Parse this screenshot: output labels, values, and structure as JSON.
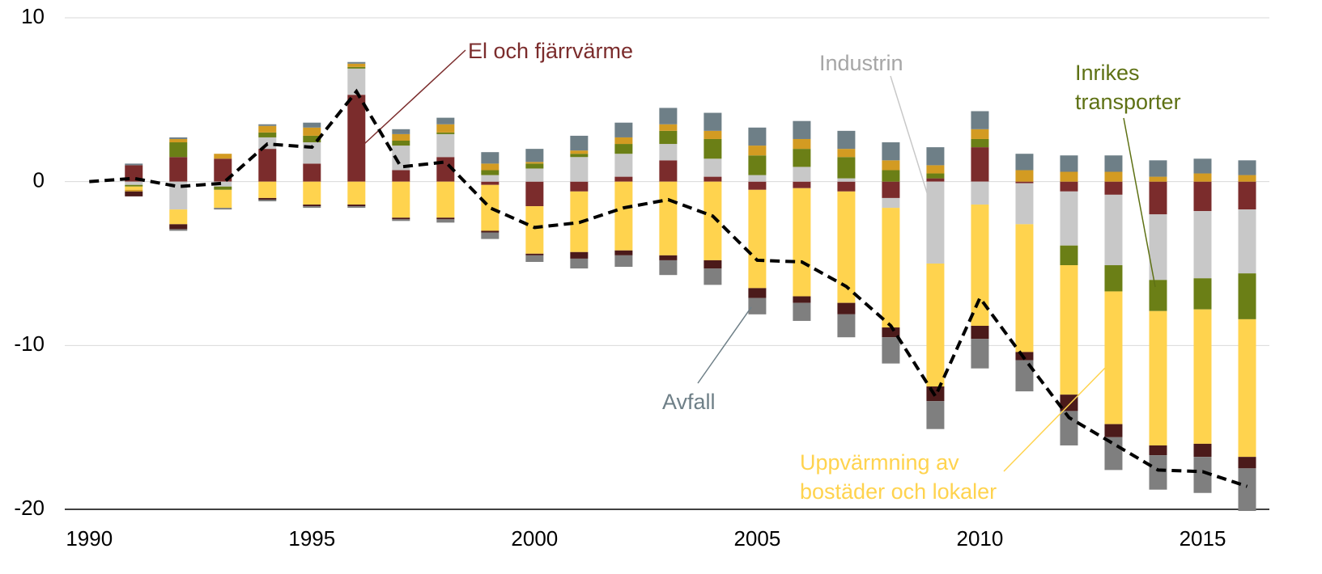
{
  "chart_data": {
    "type": "bar",
    "stacked": true,
    "x": [
      1990,
      1991,
      1992,
      1993,
      1994,
      1995,
      1996,
      1997,
      1998,
      1999,
      2000,
      2001,
      2002,
      2003,
      2004,
      2005,
      2006,
      2007,
      2008,
      2009,
      2010,
      2011,
      2012,
      2013,
      2014,
      2015,
      2016
    ],
    "xlim": [
      1989.45,
      2016.5
    ],
    "xticks": [
      1990,
      1995,
      2000,
      2005,
      2010,
      2015
    ],
    "ylim": [
      -20,
      10
    ],
    "yticks": [
      -20,
      -10,
      0,
      10
    ],
    "grid": true,
    "series": [
      {
        "name": "El och fjärrvärme",
        "color": "#7B2C2C",
        "values": [
          0,
          1.0,
          1.5,
          1.4,
          2.0,
          1.1,
          5.3,
          0.7,
          1.5,
          -0.2,
          -1.5,
          -0.6,
          0.3,
          1.3,
          0.3,
          -0.5,
          -0.4,
          -0.6,
          -1.0,
          0.2,
          2.1,
          -0.1,
          -0.6,
          -0.8,
          -2.0,
          -1.8,
          -1.7
        ]
      },
      {
        "name": "Industrin",
        "color": "#C8C8C8",
        "values": [
          0,
          -0.2,
          -1.7,
          -0.3,
          0.7,
          1.3,
          1.6,
          1.5,
          1.4,
          0.4,
          0.8,
          1.5,
          1.4,
          1.0,
          1.1,
          0.4,
          0.9,
          0.2,
          -0.6,
          -5.0,
          -1.4,
          -2.5,
          -3.3,
          -4.3,
          -4.0,
          -4.1,
          -3.9
        ]
      },
      {
        "name": "Inrikes transporter",
        "color": "#6B7F16",
        "values": [
          0,
          -0.1,
          0.9,
          -0.2,
          0.3,
          0.4,
          0.1,
          0.3,
          0.1,
          0.3,
          0.3,
          0.2,
          0.6,
          0.8,
          1.2,
          1.2,
          1.1,
          1.3,
          0.7,
          0.3,
          0.5,
          0,
          -1.2,
          -1.6,
          -1.9,
          -1.9,
          -2.8
        ]
      },
      {
        "name": "Uppvärmning av bostäder och lokaler",
        "color": "#FFD34E",
        "values": [
          0,
          -0.2,
          -0.9,
          -1.1,
          -1.0,
          -1.4,
          -1.4,
          -2.2,
          -2.2,
          -2.8,
          -2.9,
          -3.7,
          -4.2,
          -4.5,
          -4.8,
          -6.0,
          -6.6,
          -6.8,
          -7.3,
          -7.5,
          -7.4,
          -7.8,
          -7.9,
          -8.1,
          -8.2,
          -8.2,
          -8.4
        ]
      },
      {
        "color": "#D39B22",
        "values": [
          0,
          -0.1,
          0.2,
          0.3,
          0.4,
          0.5,
          0.2,
          0.4,
          0.5,
          0.4,
          0.1,
          0.2,
          0.4,
          0.4,
          0.5,
          0.6,
          0.6,
          0.5,
          0.6,
          0.5,
          0.6,
          0.7,
          0.6,
          0.6,
          0.3,
          0.5,
          0.4
        ]
      },
      {
        "color": "#6E7F87",
        "values": [
          0,
          0.1,
          0.1,
          0,
          0.1,
          0.3,
          0.1,
          0.3,
          0.4,
          0.7,
          0.8,
          0.9,
          0.9,
          1.0,
          1.1,
          1.1,
          1.1,
          1.1,
          1.1,
          1.1,
          1.1,
          1.0,
          1.0,
          1.0,
          1.0,
          0.9,
          0.9
        ]
      },
      {
        "color": "#4B1A1A",
        "values": [
          0,
          -0.3,
          -0.3,
          0,
          -0.1,
          -0.1,
          -0.1,
          -0.1,
          -0.1,
          -0.1,
          -0.1,
          -0.4,
          -0.3,
          -0.3,
          -0.5,
          -0.6,
          -0.4,
          -0.7,
          -0.6,
          -0.9,
          -0.8,
          -0.5,
          -1.0,
          -0.8,
          -0.6,
          -0.8,
          -0.7
        ]
      },
      {
        "name": "Avfall",
        "color": "#7F7F7F",
        "values": [
          0,
          0,
          -0.1,
          -0.1,
          -0.1,
          -0.1,
          -0.1,
          -0.1,
          -0.2,
          -0.4,
          -0.4,
          -0.6,
          -0.7,
          -0.9,
          -1.0,
          -1.0,
          -1.1,
          -1.4,
          -1.6,
          -1.7,
          -1.8,
          -1.9,
          -2.1,
          -2.0,
          -2.1,
          -2.2,
          -2.6
        ]
      }
    ],
    "line": {
      "color": "#000000",
      "dashed": true,
      "values": [
        0,
        0.2,
        -0.3,
        -0.1,
        2.3,
        2.1,
        5.5,
        0.9,
        1.2,
        -1.6,
        -2.8,
        -2.5,
        -1.6,
        -1.1,
        -2.1,
        -4.8,
        -4.9,
        -6.4,
        -8.8,
        -13.1,
        -7.1,
        -10.8,
        -14.4,
        -16.0,
        -17.6,
        -17.7,
        -18.6
      ]
    }
  }
}
